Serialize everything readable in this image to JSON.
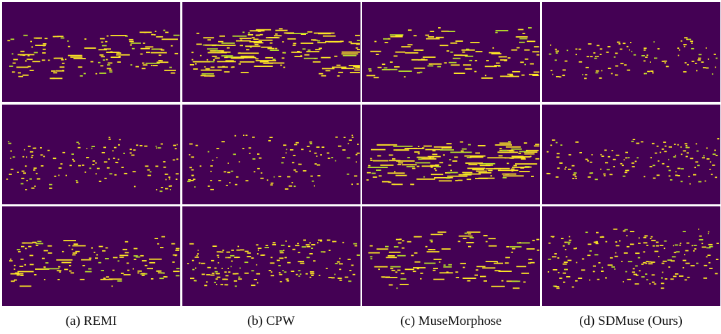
{
  "figure": {
    "captions": [
      "(a) REMI",
      "(b) CPW",
      "(c) MuseMorphose",
      "(d) SDMuse (Ours)"
    ],
    "grid_rows": 3,
    "grid_cols": 4,
    "colors": {
      "background": "#440154",
      "note": "#fde725",
      "note_dim": "#b5de2b"
    },
    "panels": [
      {
        "method": "REMI",
        "sample": 1,
        "band": [
          0.3,
          0.75
        ],
        "density": 0.55,
        "style": "mixed"
      },
      {
        "method": "CPW",
        "sample": 1,
        "band": [
          0.28,
          0.72
        ],
        "density": 0.75,
        "style": "long"
      },
      {
        "method": "MuseMorphose",
        "sample": 1,
        "band": [
          0.28,
          0.8
        ],
        "density": 0.45,
        "style": "sparse"
      },
      {
        "method": "SDMuse (Ours)",
        "sample": 1,
        "band": [
          0.38,
          0.75
        ],
        "density": 0.4,
        "style": "dots"
      },
      {
        "method": "REMI",
        "sample": 2,
        "band": [
          0.35,
          0.85
        ],
        "density": 0.55,
        "style": "dots"
      },
      {
        "method": "CPW",
        "sample": 2,
        "band": [
          0.33,
          0.85
        ],
        "density": 0.45,
        "style": "dots"
      },
      {
        "method": "MuseMorphose",
        "sample": 2,
        "band": [
          0.38,
          0.78
        ],
        "density": 0.75,
        "style": "long"
      },
      {
        "method": "SDMuse (Ours)",
        "sample": 2,
        "band": [
          0.33,
          0.78
        ],
        "density": 0.55,
        "style": "dots"
      },
      {
        "method": "REMI",
        "sample": 3,
        "band": [
          0.32,
          0.78
        ],
        "density": 0.55,
        "style": "mixed"
      },
      {
        "method": "CPW",
        "sample": 3,
        "band": [
          0.36,
          0.78
        ],
        "density": 0.8,
        "style": "dense"
      },
      {
        "method": "MuseMorphose",
        "sample": 3,
        "band": [
          0.28,
          0.8
        ],
        "density": 0.45,
        "style": "sparse"
      },
      {
        "method": "SDMuse (Ours)",
        "sample": 3,
        "band": [
          0.25,
          0.8
        ],
        "density": 0.85,
        "style": "dense"
      }
    ]
  }
}
